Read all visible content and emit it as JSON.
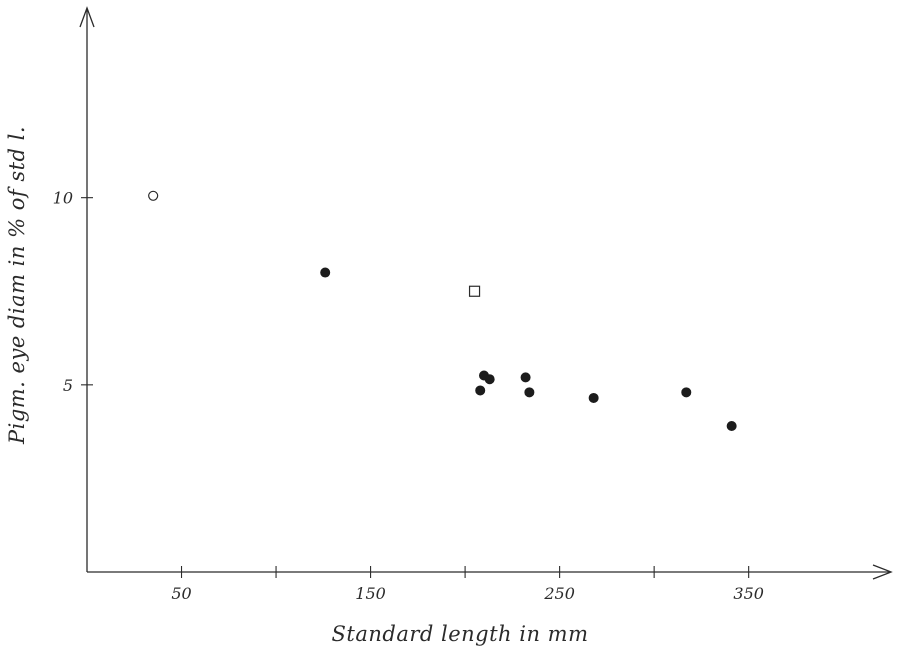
{
  "chart_data": {
    "type": "scatter",
    "title": "",
    "xlabel": "Standard length in mm",
    "ylabel": "Pigm. eye diam in % of std l.",
    "xlim": [
      0,
      420
    ],
    "ylim": [
      0,
      14.8
    ],
    "x_ticks": [
      50,
      100,
      150,
      200,
      250,
      300,
      350
    ],
    "x_tick_labels": [
      "50",
      "",
      "150",
      "",
      "250",
      "",
      "350"
    ],
    "y_ticks": [
      5,
      10
    ],
    "y_tick_labels": [
      "5",
      "10"
    ],
    "grid": false,
    "series": [
      {
        "marker": "filled-circle",
        "points": [
          {
            "x": 126,
            "y": 8.0
          },
          {
            "x": 208,
            "y": 4.85
          },
          {
            "x": 210,
            "y": 5.25
          },
          {
            "x": 213,
            "y": 5.15
          },
          {
            "x": 232,
            "y": 5.2
          },
          {
            "x": 234,
            "y": 4.8
          },
          {
            "x": 268,
            "y": 4.65
          },
          {
            "x": 317,
            "y": 4.8
          },
          {
            "x": 341,
            "y": 3.9
          }
        ]
      },
      {
        "marker": "open-circle",
        "points": [
          {
            "x": 35,
            "y": 10.05
          }
        ]
      },
      {
        "marker": "open-square",
        "points": [
          {
            "x": 205,
            "y": 7.5
          }
        ]
      }
    ]
  }
}
